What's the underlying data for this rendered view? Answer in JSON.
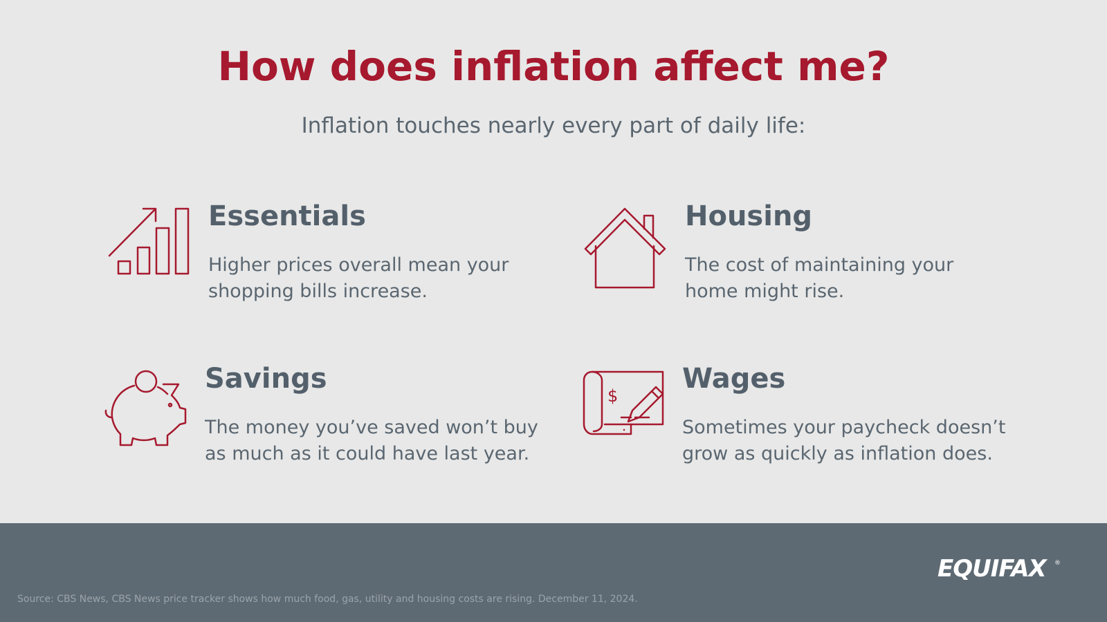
{
  "header": {
    "title": "How does inflation affect me?",
    "subtitle": "Inflation touches nearly every part of daily life:"
  },
  "items": [
    {
      "title": "Essentials",
      "lines": [
        "Higher prices overall mean your",
        "shopping bills increase."
      ]
    },
    {
      "title": "Housing",
      "lines": [
        "The cost of maintaining your",
        "home might rise."
      ]
    },
    {
      "title": "Savings",
      "lines": [
        "The money you’ve saved won’t buy",
        "as much as it could have last year."
      ]
    },
    {
      "title": "Wages",
      "lines": [
        "Sometimes your paycheck doesn’t",
        "grow as quickly as inflation does."
      ]
    }
  ],
  "footer": {
    "source": "Source: CBS News, CBS News price tracker shows how much food, gas, utility and housing costs are rising. December 11, 2024.",
    "logo": "EQUIFAX",
    "logo_mark": "®"
  }
}
